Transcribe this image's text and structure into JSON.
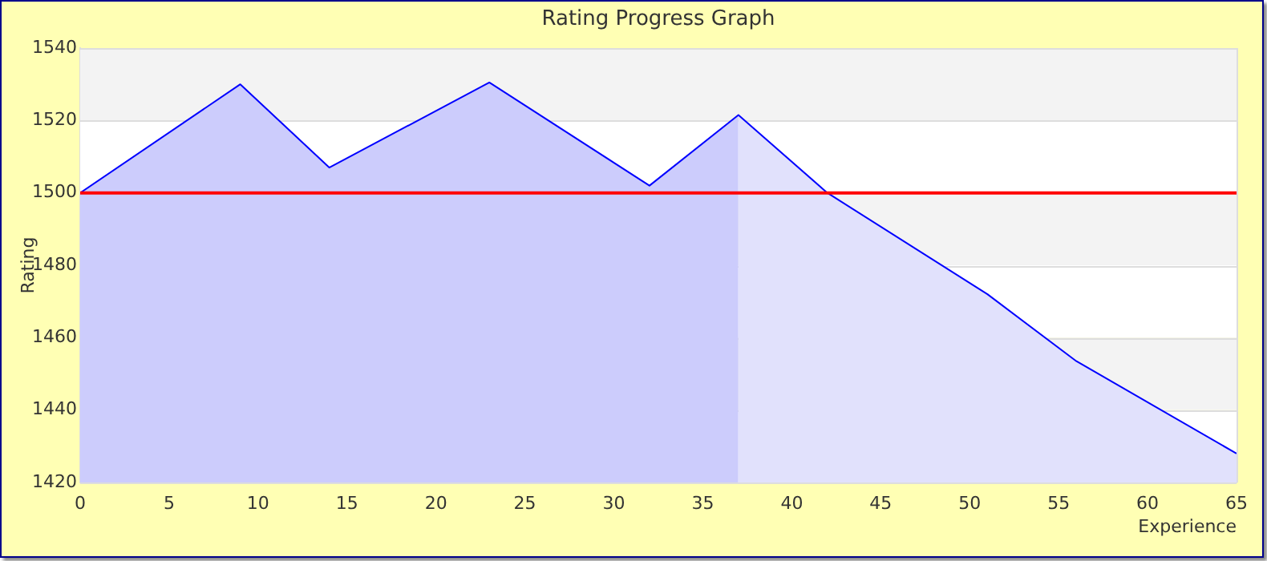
{
  "chart_data": {
    "type": "area",
    "title": "Rating Progress Graph",
    "xlabel": "Experience",
    "ylabel": "Rating",
    "xlim": [
      0,
      65
    ],
    "xticks": [
      0,
      5,
      10,
      15,
      20,
      25,
      30,
      35,
      40,
      45,
      50,
      55,
      60,
      65
    ],
    "ylim": [
      1420,
      1540
    ],
    "yticks": [
      1420,
      1440,
      1460,
      1480,
      1500,
      1520,
      1540
    ],
    "grid": "y",
    "legend": false,
    "marker": "none",
    "line_style": "solid",
    "series": [
      {
        "color": "#ccccfc",
        "x": [
          0,
          9,
          14,
          23,
          32,
          37
        ],
        "values": [
          1500,
          1530,
          1507,
          1530.5,
          1502,
          1521.5
        ]
      },
      {
        "color": "#e1e1fc",
        "x": [
          37,
          42,
          51,
          56,
          65
        ],
        "values": [
          1521.5,
          1500,
          1472,
          1453.5,
          1428
        ]
      },
      {
        "type": "line",
        "color": "#0000ff",
        "x": [
          0,
          9,
          14,
          23,
          32,
          37,
          42,
          51,
          56,
          65
        ],
        "values": [
          1500,
          1530,
          1507,
          1530.5,
          1502,
          1521.5,
          1500,
          1472,
          1453.5,
          1428
        ]
      }
    ],
    "ref_lines": [
      {
        "axis": "y",
        "value": 1500,
        "color": "#ff0000"
      }
    ]
  }
}
